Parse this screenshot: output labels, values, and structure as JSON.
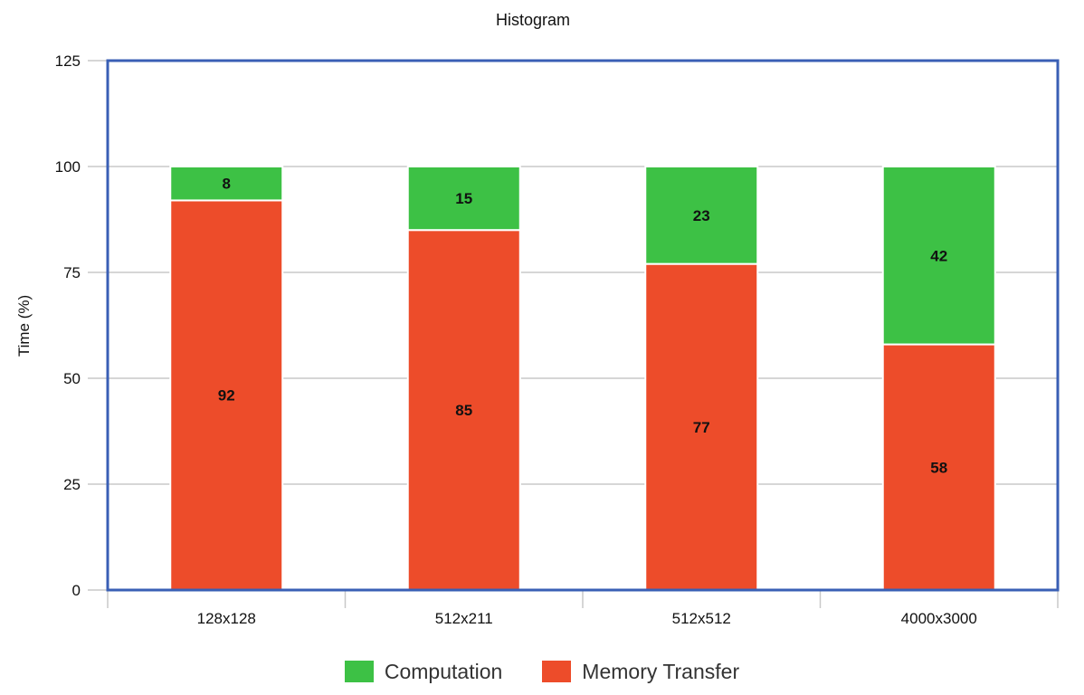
{
  "chart_data": {
    "type": "bar",
    "stacked": true,
    "title": "Histogram",
    "xlabel": "",
    "ylabel": "Time (%)",
    "ylim": [
      0,
      125
    ],
    "yticks": [
      0,
      25,
      50,
      75,
      100,
      125
    ],
    "grid": true,
    "legend_position": "bottom",
    "categories": [
      "128x128",
      "512x211",
      "512x512",
      "4000x3000"
    ],
    "series": [
      {
        "name": "Memory Transfer",
        "color": "#ed4c2a",
        "values": [
          92,
          85,
          77,
          58
        ]
      },
      {
        "name": "Computation",
        "color": "#3dc145",
        "values": [
          8,
          15,
          23,
          42
        ]
      }
    ],
    "legend_order": [
      "Computation",
      "Memory Transfer"
    ],
    "frame_color": "#3a5fb5"
  }
}
